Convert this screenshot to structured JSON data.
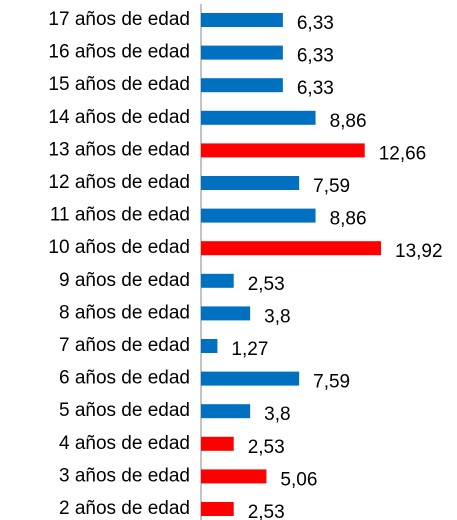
{
  "chart_data": {
    "type": "hbar",
    "categories": [
      "17 años de edad",
      "16 años de edad",
      "15 años de edad",
      "14 años de edad",
      "13 años de edad",
      "12 años de edad",
      "11 años de edad",
      "10 años de edad",
      "9 años de edad",
      "8 años de edad",
      "7 años de edad",
      "6 años de edad",
      "5 años de edad",
      "4 años de edad",
      "3 años de edad",
      "2 años de edad"
    ],
    "values": [
      6.33,
      6.33,
      6.33,
      8.86,
      12.66,
      7.59,
      8.86,
      13.92,
      2.53,
      3.8,
      1.27,
      7.59,
      3.8,
      2.53,
      5.06,
      2.53
    ],
    "value_labels": [
      "6,33",
      "6,33",
      "6,33",
      "8,86",
      "12,66",
      "7,59",
      "8,86",
      "13,92",
      "2,53",
      "3,8",
      "1,27",
      "7,59",
      "3,8",
      "2,53",
      "5,06",
      "2,53"
    ],
    "colors": [
      "#0070c0",
      "#0070c0",
      "#0070c0",
      "#0070c0",
      "#ff0000",
      "#0070c0",
      "#0070c0",
      "#ff0000",
      "#0070c0",
      "#0070c0",
      "#0070c0",
      "#0070c0",
      "#0070c0",
      "#ff0000",
      "#ff0000",
      "#ff0000"
    ]
  }
}
